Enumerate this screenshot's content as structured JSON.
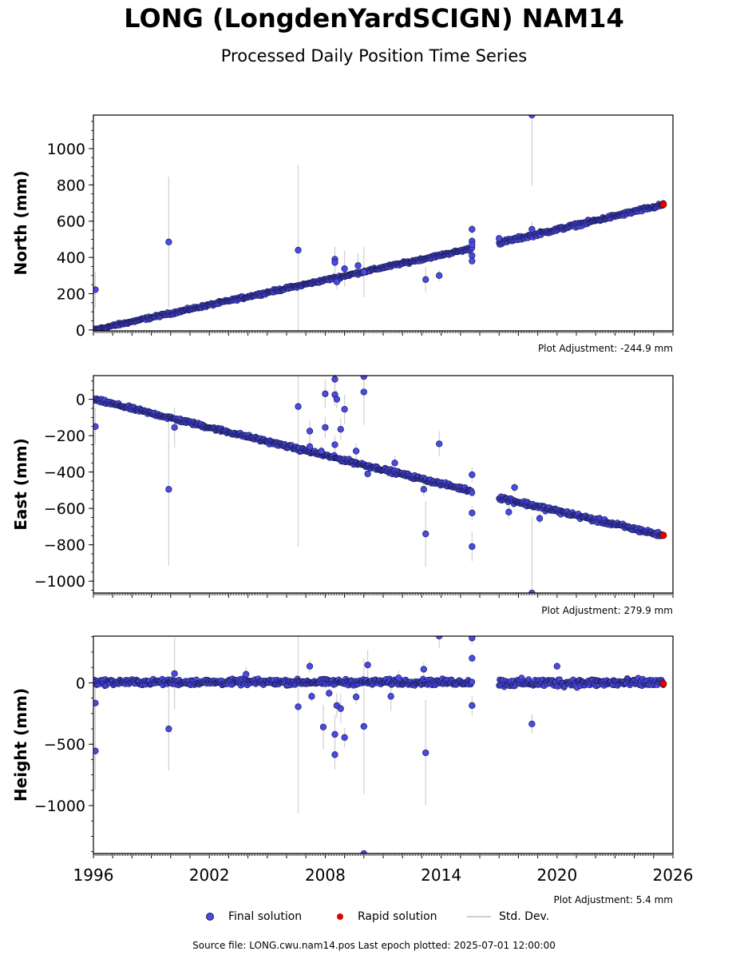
{
  "title": "LONG (LongdenYardSCIGN) NAM14",
  "subtitle": "Processed Daily Position Time Series",
  "legend": {
    "final": "Final solution",
    "rapid": "Rapid solution",
    "stddev": "Std. Dev."
  },
  "footer": "Source file: LONG.cwu.nam14.pos  Last epoch plotted: 2025-07-01 12:00:00",
  "colors": {
    "final": "#4a4ae8",
    "rapid": "#e00000",
    "stddev": "#d0d0d0",
    "edge": "#1a1a50"
  },
  "chart_data": {
    "type": "scatter",
    "x_axis": {
      "label": "",
      "ticks": [
        "1996",
        "2002",
        "2008",
        "2014",
        "2020",
        "2026"
      ],
      "range": [
        1996,
        2026
      ]
    },
    "legend_position": "bottom",
    "grid": false,
    "panels": [
      {
        "ylabel": "North (mm)",
        "ylim": [
          -5,
          1185
        ],
        "yticks": [
          0,
          200,
          400,
          600,
          800,
          1000
        ],
        "adjustment": "Plot Adjustment: -244.9 mm",
        "trend_segments": [
          {
            "x0": 1996.0,
            "y0": 0,
            "x1": 2015.6,
            "y1": 450,
            "noise": 6
          },
          {
            "x0": 2017.0,
            "y0": 480,
            "x1": 2025.5,
            "y1": 690,
            "noise": 8
          }
        ],
        "outliers": [
          {
            "x": 1996.1,
            "y": 222,
            "err": 100
          },
          {
            "x": 1999.9,
            "y": 485,
            "err": 360
          },
          {
            "x": 2006.6,
            "y": 440,
            "err": 470
          },
          {
            "x": 2008.5,
            "y": 390,
            "err": 70
          },
          {
            "x": 2008.5,
            "y": 372,
            "err": 60
          },
          {
            "x": 2008.6,
            "y": 265,
            "err": 40
          },
          {
            "x": 2009.0,
            "y": 338,
            "err": 100
          },
          {
            "x": 2009.7,
            "y": 355,
            "err": 70
          },
          {
            "x": 2010.0,
            "y": 320,
            "err": 140
          },
          {
            "x": 2013.2,
            "y": 278,
            "err": 70
          },
          {
            "x": 2013.9,
            "y": 300,
            "err": 30
          },
          {
            "x": 2015.6,
            "y": 555,
            "err": 30
          },
          {
            "x": 2015.6,
            "y": 490,
            "err": 20
          },
          {
            "x": 2015.6,
            "y": 470,
            "err": 20
          },
          {
            "x": 2015.6,
            "y": 410,
            "err": 20
          },
          {
            "x": 2015.6,
            "y": 380,
            "err": 20
          },
          {
            "x": 2018.7,
            "y": 1185,
            "err": 390
          },
          {
            "x": 2018.7,
            "y": 555,
            "err": 40
          },
          {
            "x": 2017.0,
            "y": 505,
            "err": 15
          }
        ],
        "rapid": {
          "x": 2025.5,
          "y": 692
        }
      },
      {
        "ylabel": "East (mm)",
        "ylim": [
          -1065,
          130
        ],
        "yticks": [
          -1000,
          -800,
          -600,
          -400,
          -200,
          0
        ],
        "adjustment": "Plot Adjustment: 279.9 mm",
        "trend_segments": [
          {
            "x0": 1996.0,
            "y0": 0,
            "x1": 2015.6,
            "y1": -505,
            "noise": 8
          },
          {
            "x0": 2017.0,
            "y0": -540,
            "x1": 2025.5,
            "y1": -750,
            "noise": 10
          }
        ],
        "outliers": [
          {
            "x": 1996.1,
            "y": -150,
            "err": 100
          },
          {
            "x": 1999.9,
            "y": -495,
            "err": 420
          },
          {
            "x": 2000.2,
            "y": -155,
            "err": 110
          },
          {
            "x": 2006.6,
            "y": -40,
            "err": 770
          },
          {
            "x": 2007.2,
            "y": -175,
            "err": 60
          },
          {
            "x": 2007.2,
            "y": -260,
            "err": 40
          },
          {
            "x": 2007.8,
            "y": -285,
            "err": 30
          },
          {
            "x": 2008.0,
            "y": 30,
            "err": 80
          },
          {
            "x": 2008.0,
            "y": -155,
            "err": 60
          },
          {
            "x": 2008.5,
            "y": 110,
            "err": 100
          },
          {
            "x": 2008.5,
            "y": 25,
            "err": 60
          },
          {
            "x": 2008.6,
            "y": 0,
            "err": 50
          },
          {
            "x": 2008.5,
            "y": -250,
            "err": 50
          },
          {
            "x": 2008.8,
            "y": -165,
            "err": 60
          },
          {
            "x": 2009.0,
            "y": -55,
            "err": 80
          },
          {
            "x": 2009.6,
            "y": -285,
            "err": 40
          },
          {
            "x": 2010.0,
            "y": 125,
            "err": 90
          },
          {
            "x": 2010.0,
            "y": 40,
            "err": 180
          },
          {
            "x": 2010.2,
            "y": -410,
            "err": 20
          },
          {
            "x": 2011.6,
            "y": -350,
            "err": 40
          },
          {
            "x": 2013.1,
            "y": -495,
            "err": 40
          },
          {
            "x": 2013.2,
            "y": -740,
            "err": 180
          },
          {
            "x": 2013.9,
            "y": -245,
            "err": 70
          },
          {
            "x": 2015.6,
            "y": -415,
            "err": 40
          },
          {
            "x": 2015.6,
            "y": -625,
            "err": 40
          },
          {
            "x": 2015.6,
            "y": -810,
            "err": 80
          },
          {
            "x": 2017.5,
            "y": -620,
            "err": 40
          },
          {
            "x": 2017.8,
            "y": -485,
            "err": 30
          },
          {
            "x": 2018.7,
            "y": -1065,
            "err": 420
          },
          {
            "x": 2019.1,
            "y": -655,
            "err": 30
          }
        ],
        "rapid": {
          "x": 2025.5,
          "y": -748
        }
      },
      {
        "ylabel": "Height (mm)",
        "ylim": [
          -1390,
          380
        ],
        "yticks": [
          -1000,
          -500,
          0
        ],
        "adjustment": "Plot Adjustment: 5.4 mm",
        "trend_segments": [
          {
            "x0": 1996.0,
            "y0": 5,
            "x1": 2015.6,
            "y1": 5,
            "noise": 18
          },
          {
            "x0": 2017.0,
            "y0": 0,
            "x1": 2025.5,
            "y1": 0,
            "noise": 25
          }
        ],
        "outliers": [
          {
            "x": 1996.1,
            "y": -165,
            "err": 150
          },
          {
            "x": 1996.1,
            "y": -555,
            "err": 320
          },
          {
            "x": 1999.9,
            "y": -375,
            "err": 340
          },
          {
            "x": 2000.2,
            "y": 75,
            "err": 290
          },
          {
            "x": 2003.9,
            "y": 70,
            "err": 60
          },
          {
            "x": 2006.6,
            "y": -195,
            "err": 870
          },
          {
            "x": 2007.2,
            "y": 135,
            "err": 50
          },
          {
            "x": 2007.3,
            "y": -110,
            "err": 40
          },
          {
            "x": 2007.9,
            "y": -360,
            "err": 180
          },
          {
            "x": 2008.2,
            "y": -85,
            "err": 40
          },
          {
            "x": 2008.5,
            "y": -420,
            "err": 160
          },
          {
            "x": 2008.5,
            "y": -585,
            "err": 120
          },
          {
            "x": 2008.6,
            "y": -185,
            "err": 100
          },
          {
            "x": 2008.8,
            "y": -210,
            "err": 120
          },
          {
            "x": 2009.0,
            "y": -445,
            "err": 80
          },
          {
            "x": 2009.6,
            "y": -115,
            "err": 60
          },
          {
            "x": 2010.0,
            "y": -355,
            "err": 550
          },
          {
            "x": 2010.0,
            "y": -1390,
            "err": 0
          },
          {
            "x": 2010.2,
            "y": 145,
            "err": 120
          },
          {
            "x": 2011.4,
            "y": -110,
            "err": 120
          },
          {
            "x": 2011.8,
            "y": 40,
            "err": 60
          },
          {
            "x": 2013.1,
            "y": 110,
            "err": 60
          },
          {
            "x": 2013.2,
            "y": -570,
            "err": 430
          },
          {
            "x": 2013.9,
            "y": 380,
            "err": 100
          },
          {
            "x": 2015.6,
            "y": 365,
            "err": 50
          },
          {
            "x": 2015.6,
            "y": 200,
            "err": 40
          },
          {
            "x": 2015.6,
            "y": -185,
            "err": 80
          },
          {
            "x": 2018.7,
            "y": -335,
            "err": 80
          },
          {
            "x": 2020.0,
            "y": 135,
            "err": 30
          }
        ],
        "rapid": {
          "x": 2025.5,
          "y": -8
        }
      }
    ]
  }
}
